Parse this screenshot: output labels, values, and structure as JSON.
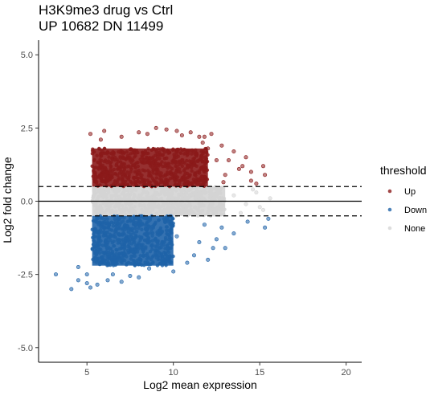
{
  "chart_data": {
    "type": "scatter",
    "title": "H3K9me3 drug vs Ctrl",
    "subtitle": "UP 10682 DN 11499",
    "xlabel": "Log2 mean expression",
    "ylabel": "Log2 fold change",
    "xlim": [
      2.2,
      20.9
    ],
    "ylim": [
      -5.5,
      5.5
    ],
    "xticks": [
      5,
      10,
      15,
      20
    ],
    "xtick_labels": [
      "5",
      "10",
      "15",
      "20"
    ],
    "yticks": [
      -5,
      -2.5,
      0,
      2.5,
      5
    ],
    "ytick_labels": [
      "-5.0",
      "-2.5",
      "0.0",
      "2.5",
      "5.0"
    ],
    "hlines": [
      {
        "y": 0.5,
        "style": "dashed"
      },
      {
        "y": 0,
        "style": "solid"
      },
      {
        "y": -0.5,
        "style": "dashed"
      }
    ],
    "grid": false,
    "legend": {
      "title": "threshold",
      "placement": "right",
      "entries": [
        "Up",
        "Down",
        "None"
      ]
    },
    "series": [
      {
        "name": "Up",
        "color": "#8b1a1a",
        "density_region": {
          "x": [
            5.3,
            12
          ],
          "y": [
            0.5,
            1.8
          ]
        },
        "points": [
          [
            5.2,
            2.3
          ],
          [
            6.0,
            2.4
          ],
          [
            7.0,
            2.2
          ],
          [
            8.0,
            2.35
          ],
          [
            9.0,
            2.5
          ],
          [
            10.2,
            2.4
          ],
          [
            11.0,
            2.35
          ],
          [
            11.5,
            2.2
          ],
          [
            12.2,
            2.3
          ],
          [
            12.8,
            1.9
          ],
          [
            13.5,
            1.7
          ],
          [
            14.0,
            1.2
          ],
          [
            14.5,
            1.0
          ],
          [
            14.8,
            0.6
          ],
          [
            13.0,
            0.9
          ],
          [
            12.5,
            1.4
          ],
          [
            12.0,
            1.8
          ],
          [
            11.7,
            2.0
          ],
          [
            13.2,
            1.4
          ],
          [
            14.2,
            1.5
          ],
          [
            15.3,
            0.9
          ],
          [
            15.2,
            1.2
          ],
          [
            14.5,
            0.7
          ],
          [
            5.8,
            2.1
          ],
          [
            8.5,
            2.3
          ],
          [
            9.6,
            2.45
          ],
          [
            10.5,
            2.25
          ],
          [
            13.8,
            1.1
          ],
          [
            12.9,
            0.65
          ],
          [
            11.8,
            2.2
          ]
        ]
      },
      {
        "name": "Down",
        "color": "#1f63a8",
        "density_region": {
          "x": [
            5.3,
            10
          ],
          "y": [
            -2.2,
            -0.5
          ]
        },
        "points": [
          [
            4.1,
            -3.0
          ],
          [
            3.2,
            -2.5
          ],
          [
            4.5,
            -2.7
          ],
          [
            5.0,
            -2.8
          ],
          [
            5.2,
            -2.95
          ],
          [
            5.6,
            -2.85
          ],
          [
            6.2,
            -2.7
          ],
          [
            7.0,
            -2.75
          ],
          [
            7.5,
            -2.55
          ],
          [
            8.0,
            -2.6
          ],
          [
            8.6,
            -2.3
          ],
          [
            9.5,
            -2.0
          ],
          [
            10.0,
            -2.4
          ],
          [
            10.8,
            -2.1
          ],
          [
            11.5,
            -1.4
          ],
          [
            12.0,
            -2.0
          ],
          [
            12.3,
            -1.6
          ],
          [
            12.5,
            -1.3
          ],
          [
            13.0,
            -1.6
          ],
          [
            13.5,
            -1.1
          ],
          [
            14.3,
            -0.7
          ],
          [
            15.5,
            -0.6
          ],
          [
            11.2,
            -1.85
          ],
          [
            10.2,
            -1.2
          ],
          [
            9.2,
            -1.95
          ],
          [
            6.5,
            -2.5
          ],
          [
            4.5,
            -2.25
          ],
          [
            5.0,
            -2.5
          ],
          [
            12.8,
            -0.9
          ],
          [
            11.8,
            -0.8
          ],
          [
            15.3,
            -0.9
          ]
        ]
      },
      {
        "name": "None",
        "color": "#d4d4d4",
        "density_region": {
          "x": [
            5.3,
            13
          ],
          "y": [
            -0.5,
            0.5
          ]
        },
        "points": [
          [
            13.5,
            0.2
          ],
          [
            14.2,
            -0.1
          ],
          [
            14.8,
            0.3
          ],
          [
            15.2,
            -0.3
          ],
          [
            15.6,
            0.1
          ],
          [
            13.9,
            -0.4
          ],
          [
            14.6,
            0.4
          ],
          [
            15.0,
            -0.2
          ]
        ]
      }
    ]
  }
}
